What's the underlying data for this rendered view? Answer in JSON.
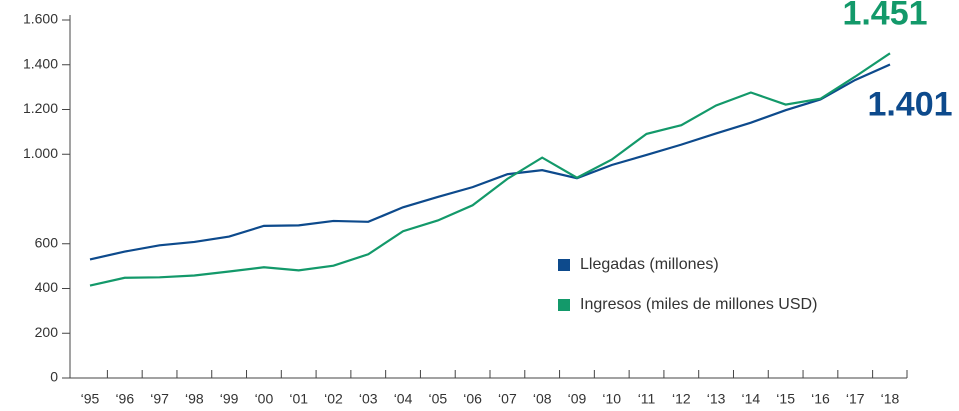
{
  "chart_data": {
    "type": "line",
    "categories": [
      "‘95",
      "‘96",
      "‘97",
      "‘98",
      "‘99",
      "‘00",
      "‘01",
      "‘02",
      "‘03",
      "‘04",
      "‘05",
      "‘06",
      "‘07",
      "‘08",
      "‘09",
      "‘10",
      "‘11",
      "‘12",
      "‘13",
      "‘14",
      "‘15",
      "‘16",
      "‘17",
      "‘18"
    ],
    "series": [
      {
        "name": "Llegadas (millones)",
        "color": "#0d4a8c",
        "values": [
          530,
          565,
          593,
          608,
          632,
          680,
          682,
          702,
          698,
          763,
          809,
          853,
          911,
          929,
          893,
          952,
          997,
          1043,
          1093,
          1141,
          1197,
          1245,
          1332,
          1401
        ],
        "value_labels": [
          null,
          null,
          null,
          null,
          null,
          null,
          null,
          null,
          null,
          null,
          null,
          null,
          null,
          null,
          null,
          null,
          null,
          null,
          null,
          null,
          null,
          null,
          null,
          "1.401"
        ]
      },
      {
        "name": "Ingresos (miles de millones USD)",
        "color": "#13996a",
        "values": [
          413,
          448,
          450,
          458,
          476,
          495,
          481,
          502,
          553,
          656,
          704,
          772,
          890,
          985,
          895,
          976,
          1091,
          1130,
          1218,
          1276,
          1222,
          1248,
          1347,
          1451
        ],
        "value_labels": [
          null,
          null,
          null,
          null,
          null,
          null,
          null,
          null,
          null,
          null,
          null,
          null,
          null,
          null,
          null,
          null,
          null,
          null,
          null,
          null,
          null,
          null,
          null,
          "1.451"
        ]
      }
    ],
    "ylim": [
      0,
      1600
    ],
    "yticks": [
      0,
      200,
      400,
      600,
      {
        "value": 1000,
        "label": "1.000"
      },
      {
        "value": 1200,
        "label": "1.200"
      },
      {
        "value": 1400,
        "label": "1.400"
      },
      {
        "value": 1600,
        "label": "1.600"
      }
    ],
    "grid": false
  }
}
